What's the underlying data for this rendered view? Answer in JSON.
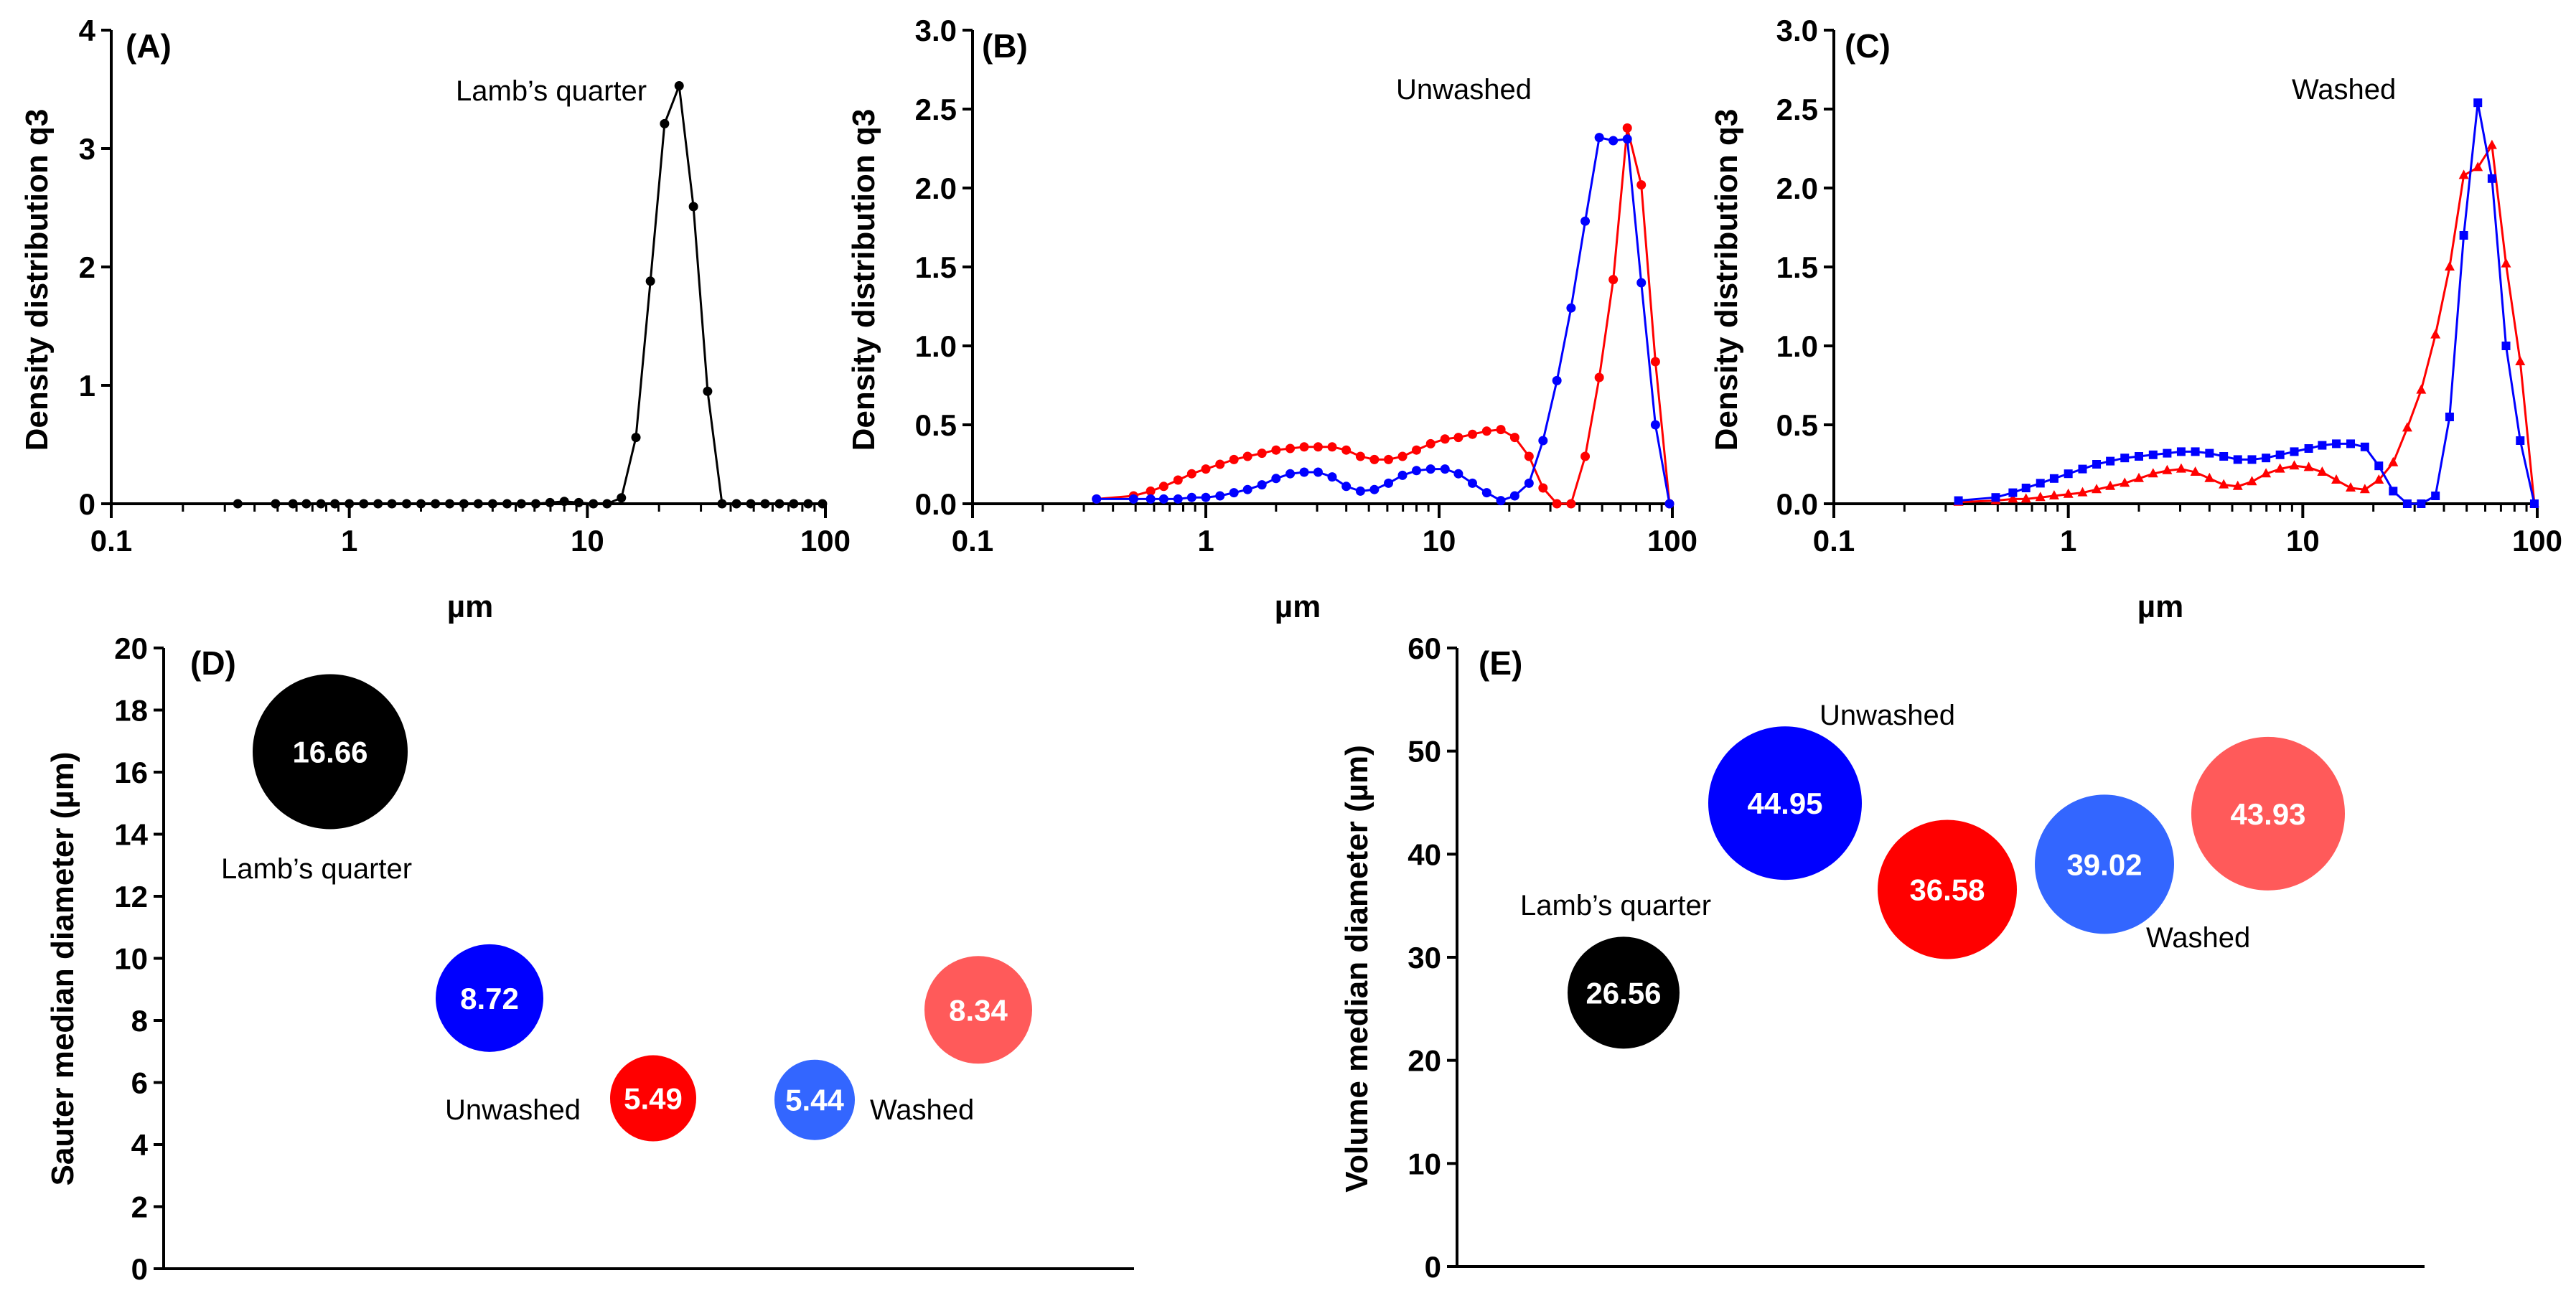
{
  "colors": {
    "lambs": "#000000",
    "unwashed_blue": "#0000ff",
    "unwashed_red": "#ff0000",
    "washed_blue": "#3366ff",
    "washed_red": "#ff5a5a",
    "line_black": "#000000",
    "line_red": "#ff0000",
    "line_blue": "#0000ff"
  },
  "chart_data": [
    {
      "id": "A",
      "type": "line",
      "panel_label": "(A)",
      "annotation": "Lamb’s quarter",
      "xlabel": "µm",
      "ylabel": "Density distribution q3",
      "xscale": "log",
      "xlim": [
        0.1,
        100
      ],
      "ylim": [
        0,
        4
      ],
      "xticks": [
        0.1,
        1,
        10,
        100
      ],
      "xtick_labels": [
        "0.1",
        "1",
        "10",
        "100"
      ],
      "yticks": [
        0,
        1,
        2,
        3,
        4
      ],
      "ytick_labels": [
        "0",
        "1",
        "2",
        "3",
        "4"
      ],
      "series": [
        {
          "name": "Lamb’s quarter",
          "color": "#000000",
          "marker": "circle",
          "x": [
            0.34,
            0.49,
            0.58,
            0.66,
            0.76,
            0.87,
            1.0,
            1.15,
            1.32,
            1.51,
            1.74,
            2.0,
            2.3,
            2.64,
            3.03,
            3.48,
            4.0,
            4.6,
            5.28,
            6.07,
            6.97,
            8.0,
            9.2,
            10.6,
            12.1,
            13.9,
            16.0,
            18.4,
            21.1,
            24.3,
            27.9,
            32.0,
            36.8,
            42.3,
            48.6,
            55.8,
            64.1,
            73.6,
            84.6,
            97.2
          ],
          "y": [
            0,
            0,
            0,
            0,
            0,
            0,
            0,
            0,
            0,
            0,
            0,
            0,
            0,
            0,
            0,
            0,
            0,
            0,
            0,
            0,
            0.01,
            0.02,
            0.01,
            0,
            0,
            0.05,
            0.56,
            1.88,
            3.21,
            3.53,
            2.51,
            0.95,
            0,
            0,
            0,
            0,
            0,
            0,
            0,
            0
          ]
        }
      ]
    },
    {
      "id": "B",
      "type": "line",
      "panel_label": "(B)",
      "annotation": "Unwashed",
      "xlabel": "µm",
      "ylabel": "Density distribution q3",
      "xscale": "log",
      "xlim": [
        0.1,
        100
      ],
      "ylim": [
        0,
        3.0
      ],
      "xticks": [
        0.1,
        1,
        10,
        100
      ],
      "xtick_labels": [
        "0.1",
        "1",
        "10",
        "100"
      ],
      "yticks": [
        0,
        0.5,
        1.0,
        1.5,
        2.0,
        2.5,
        3.0
      ],
      "ytick_labels": [
        "0.0",
        "0.5",
        "1.0",
        "1.5",
        "2.0",
        "2.5",
        "3.0"
      ],
      "series": [
        {
          "name": "Unwashed (red)",
          "color": "#ff0000",
          "marker": "circle",
          "x": [
            0.34,
            0.49,
            0.58,
            0.66,
            0.76,
            0.87,
            1.0,
            1.15,
            1.32,
            1.51,
            1.74,
            2.0,
            2.3,
            2.64,
            3.03,
            3.48,
            4.0,
            4.6,
            5.28,
            6.07,
            6.97,
            8.0,
            9.2,
            10.6,
            12.1,
            13.9,
            16.0,
            18.4,
            21.1,
            24.3,
            27.9,
            32.0,
            36.8,
            42.3,
            48.6,
            55.8,
            64.1,
            73.6,
            84.6,
            97.2
          ],
          "y": [
            0.03,
            0.05,
            0.08,
            0.11,
            0.15,
            0.19,
            0.22,
            0.25,
            0.28,
            0.3,
            0.32,
            0.34,
            0.35,
            0.36,
            0.36,
            0.36,
            0.34,
            0.3,
            0.28,
            0.28,
            0.3,
            0.34,
            0.38,
            0.41,
            0.42,
            0.44,
            0.46,
            0.47,
            0.42,
            0.3,
            0.1,
            0.0,
            0.0,
            0.3,
            0.8,
            1.42,
            2.38,
            2.02,
            0.9,
            0.0
          ]
        },
        {
          "name": "Unwashed (blue)",
          "color": "#0000ff",
          "marker": "circle",
          "x": [
            0.34,
            0.49,
            0.58,
            0.66,
            0.76,
            0.87,
            1.0,
            1.15,
            1.32,
            1.51,
            1.74,
            2.0,
            2.3,
            2.64,
            3.03,
            3.48,
            4.0,
            4.6,
            5.28,
            6.07,
            6.97,
            8.0,
            9.2,
            10.6,
            12.1,
            13.9,
            16.0,
            18.4,
            21.1,
            24.3,
            27.9,
            32.0,
            36.8,
            42.3,
            48.6,
            55.8,
            64.1,
            73.6,
            84.6,
            97.2
          ],
          "y": [
            0.03,
            0.03,
            0.03,
            0.03,
            0.03,
            0.04,
            0.04,
            0.05,
            0.07,
            0.09,
            0.12,
            0.16,
            0.19,
            0.2,
            0.2,
            0.17,
            0.11,
            0.08,
            0.09,
            0.13,
            0.18,
            0.21,
            0.22,
            0.22,
            0.19,
            0.13,
            0.07,
            0.02,
            0.05,
            0.13,
            0.4,
            0.78,
            1.24,
            1.79,
            2.32,
            2.3,
            2.31,
            1.4,
            0.5,
            0.0
          ]
        }
      ]
    },
    {
      "id": "C",
      "type": "line",
      "panel_label": "(C)",
      "annotation": "Washed",
      "xlabel": "µm",
      "ylabel": "Density distribution q3",
      "xscale": "log",
      "xlim": [
        0.1,
        100
      ],
      "ylim": [
        0,
        3.0
      ],
      "xticks": [
        0.1,
        1,
        10,
        100
      ],
      "xtick_labels": [
        "0.1",
        "1",
        "10",
        "100"
      ],
      "yticks": [
        0,
        0.5,
        1.0,
        1.5,
        2.0,
        2.5,
        3.0
      ],
      "ytick_labels": [
        "0.0",
        "0.5",
        "1.0",
        "1.5",
        "2.0",
        "2.5",
        "3.0"
      ],
      "series": [
        {
          "name": "Washed (red)",
          "color": "#ff0000",
          "marker": "triangle",
          "x": [
            0.34,
            0.49,
            0.58,
            0.66,
            0.76,
            0.87,
            1.0,
            1.15,
            1.32,
            1.51,
            1.74,
            2.0,
            2.3,
            2.64,
            3.03,
            3.48,
            4.0,
            4.6,
            5.28,
            6.07,
            6.97,
            8.0,
            9.2,
            10.6,
            12.1,
            13.9,
            16.0,
            18.4,
            21.1,
            24.3,
            27.9,
            32.0,
            36.8,
            42.3,
            48.6,
            55.8,
            64.1,
            73.6,
            84.6,
            97.2
          ],
          "y": [
            0.01,
            0.02,
            0.03,
            0.03,
            0.04,
            0.05,
            0.06,
            0.07,
            0.09,
            0.11,
            0.13,
            0.16,
            0.19,
            0.21,
            0.22,
            0.2,
            0.16,
            0.12,
            0.11,
            0.14,
            0.19,
            0.22,
            0.24,
            0.23,
            0.2,
            0.15,
            0.1,
            0.09,
            0.15,
            0.26,
            0.48,
            0.72,
            1.07,
            1.5,
            2.08,
            2.13,
            2.27,
            1.52,
            0.9,
            0.0
          ]
        },
        {
          "name": "Washed (blue)",
          "color": "#0000ff",
          "marker": "square",
          "x": [
            0.34,
            0.49,
            0.58,
            0.66,
            0.76,
            0.87,
            1.0,
            1.15,
            1.32,
            1.51,
            1.74,
            2.0,
            2.3,
            2.64,
            3.03,
            3.48,
            4.0,
            4.6,
            5.28,
            6.07,
            6.97,
            8.0,
            9.2,
            10.6,
            12.1,
            13.9,
            16.0,
            18.4,
            21.1,
            24.3,
            27.9,
            32.0,
            36.8,
            42.3,
            48.6,
            55.8,
            64.1,
            73.6,
            84.6,
            97.2
          ],
          "y": [
            0.02,
            0.04,
            0.07,
            0.1,
            0.13,
            0.16,
            0.19,
            0.22,
            0.25,
            0.27,
            0.29,
            0.3,
            0.31,
            0.32,
            0.33,
            0.33,
            0.32,
            0.3,
            0.28,
            0.28,
            0.29,
            0.31,
            0.33,
            0.35,
            0.37,
            0.38,
            0.38,
            0.36,
            0.24,
            0.08,
            0.0,
            0.0,
            0.05,
            0.55,
            1.7,
            2.54,
            2.06,
            1.0,
            0.4,
            0.0
          ]
        }
      ]
    },
    {
      "id": "D",
      "type": "scatter",
      "panel_label": "(D)",
      "ylabel": "Sauter median diameter (µm)",
      "ylim": [
        0,
        20
      ],
      "yticks": [
        0,
        2,
        4,
        6,
        8,
        10,
        12,
        14,
        16,
        18,
        20
      ],
      "ytick_labels": [
        "0",
        "2",
        "4",
        "6",
        "8",
        "10",
        "12",
        "14",
        "16",
        "18",
        "20"
      ],
      "annotations": [
        "Lamb’s quarter",
        "Unwashed",
        "Washed"
      ],
      "points": [
        {
          "label": "16.66",
          "value": 16.66,
          "color": "#000000",
          "group": "Lamb’s quarter"
        },
        {
          "label": "8.72",
          "value": 8.72,
          "color": "#0000ff",
          "group": "Unwashed"
        },
        {
          "label": "5.49",
          "value": 5.49,
          "color": "#ff0000",
          "group": "Unwashed"
        },
        {
          "label": "5.44",
          "value": 5.44,
          "color": "#3366ff",
          "group": "Washed"
        },
        {
          "label": "8.34",
          "value": 8.34,
          "color": "#ff5a5a",
          "group": "Washed"
        }
      ]
    },
    {
      "id": "E",
      "type": "scatter",
      "panel_label": "(E)",
      "ylabel": "Volume median diameter (µm)",
      "ylim": [
        0,
        60
      ],
      "yticks": [
        0,
        10,
        20,
        30,
        40,
        50,
        60
      ],
      "ytick_labels": [
        "0",
        "10",
        "20",
        "30",
        "40",
        "50",
        "60"
      ],
      "annotations": [
        "Lamb’s quarter",
        "Unwashed",
        "Washed"
      ],
      "points": [
        {
          "label": "26.56",
          "value": 26.56,
          "color": "#000000",
          "group": "Lamb’s quarter"
        },
        {
          "label": "44.95",
          "value": 44.95,
          "color": "#0000ff",
          "group": "Unwashed"
        },
        {
          "label": "36.58",
          "value": 36.58,
          "color": "#ff0000",
          "group": "Unwashed"
        },
        {
          "label": "39.02",
          "value": 39.02,
          "color": "#3366ff",
          "group": "Washed"
        },
        {
          "label": "43.93",
          "value": 43.93,
          "color": "#ff5a5a",
          "group": "Washed"
        }
      ]
    }
  ]
}
